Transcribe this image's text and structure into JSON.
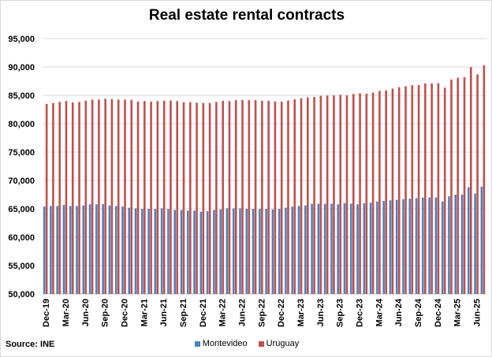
{
  "chart_data": {
    "type": "bar",
    "title": "Real estate rental contracts",
    "source": "Source: INE",
    "xlabel": "",
    "ylabel": "",
    "ylim": [
      50000,
      95000
    ],
    "yticks": [
      "50,000",
      "55,000",
      "60,000",
      "65,000",
      "70,000",
      "75,000",
      "80,000",
      "85,000",
      "90,000",
      "95,000"
    ],
    "ytick_values": [
      50000,
      55000,
      60000,
      65000,
      70000,
      75000,
      80000,
      85000,
      90000,
      95000
    ],
    "grid": true,
    "legend_position": "bottom",
    "categories": [
      "Dec-19",
      "Jan-20",
      "Feb-20",
      "Mar-20",
      "Apr-20",
      "May-20",
      "Jun-20",
      "Jul-20",
      "Aug-20",
      "Sep-20",
      "Oct-20",
      "Nov-20",
      "Dec-20",
      "Jan-21",
      "Feb-21",
      "Mar-21",
      "Apr-21",
      "May-21",
      "Jun-21",
      "Jul-21",
      "Aug-21",
      "Sep-21",
      "Oct-21",
      "Nov-21",
      "Dec-21",
      "Jan-22",
      "Feb-22",
      "Mar-22",
      "Apr-22",
      "May-22",
      "Jun-22",
      "Jul-22",
      "Aug-22",
      "Sep-22",
      "Oct-22",
      "Nov-22",
      "Dec-22",
      "Jan-23",
      "Feb-23",
      "Mar-23",
      "Apr-23",
      "May-23",
      "Jun-23",
      "Jul-23",
      "Aug-23",
      "Sep-23",
      "Oct-23",
      "Nov-23",
      "Dec-23",
      "Jan-24",
      "Feb-24",
      "Mar-24",
      "Apr-24",
      "May-24",
      "Jun-24",
      "Jul-24",
      "Aug-24",
      "Sep-24",
      "Oct-24",
      "Nov-24",
      "Dec-24",
      "Jan-25",
      "Feb-25",
      "Mar-25",
      "Apr-25",
      "May-25",
      "Jun-25",
      "Jul-25"
    ],
    "xtick_labels": [
      "Dec-19",
      "Mar-20",
      "Jun-20",
      "Sep-20",
      "Dec-20",
      "Mar-21",
      "Jun-21",
      "Sep-21",
      "Dec-21",
      "Mar-22",
      "Jun-22",
      "Sep-22",
      "Dec-22",
      "Mar-23",
      "Jun-23",
      "Sep-23",
      "Dec-23",
      "Mar-24",
      "Jun-24",
      "Sep-24",
      "Dec-24",
      "Mar-25",
      "Jun-25"
    ],
    "series": [
      {
        "name": "Montevideo",
        "color": "#4f81bd",
        "values": [
          65400,
          65500,
          65500,
          65700,
          65500,
          65500,
          65600,
          65800,
          65800,
          65850,
          65600,
          65500,
          65400,
          65200,
          65100,
          65000,
          65000,
          65000,
          65100,
          65000,
          64800,
          64800,
          64700,
          64700,
          64500,
          64600,
          64800,
          64900,
          65100,
          65100,
          65100,
          65000,
          65000,
          65000,
          65000,
          64900,
          65000,
          65200,
          65400,
          65500,
          65600,
          65900,
          65900,
          65900,
          65900,
          65800,
          66000,
          65900,
          65800,
          66000,
          66100,
          66300,
          66400,
          66500,
          66600,
          66700,
          66800,
          66900,
          67000,
          67000,
          67000,
          66300,
          67200,
          67500,
          67500,
          68800,
          67700,
          68900
        ]
      },
      {
        "name": "Uruguay",
        "color": "#c0504d",
        "values": [
          83500,
          83650,
          83850,
          84000,
          83750,
          83850,
          84050,
          84250,
          84250,
          84400,
          84350,
          84250,
          84250,
          84200,
          83900,
          84000,
          83900,
          84000,
          84050,
          84100,
          84000,
          83800,
          83800,
          83700,
          83650,
          83650,
          83850,
          84050,
          84000,
          84150,
          84200,
          84150,
          84150,
          84050,
          84050,
          83900,
          83900,
          84100,
          84300,
          84500,
          84650,
          84700,
          84900,
          84950,
          85000,
          85100,
          85000,
          85250,
          85350,
          85300,
          85500,
          85800,
          85900,
          86200,
          86450,
          86600,
          86800,
          86800,
          87100,
          87100,
          87150,
          86350,
          87800,
          88100,
          88200,
          90000,
          88700,
          90300
        ]
      }
    ]
  }
}
